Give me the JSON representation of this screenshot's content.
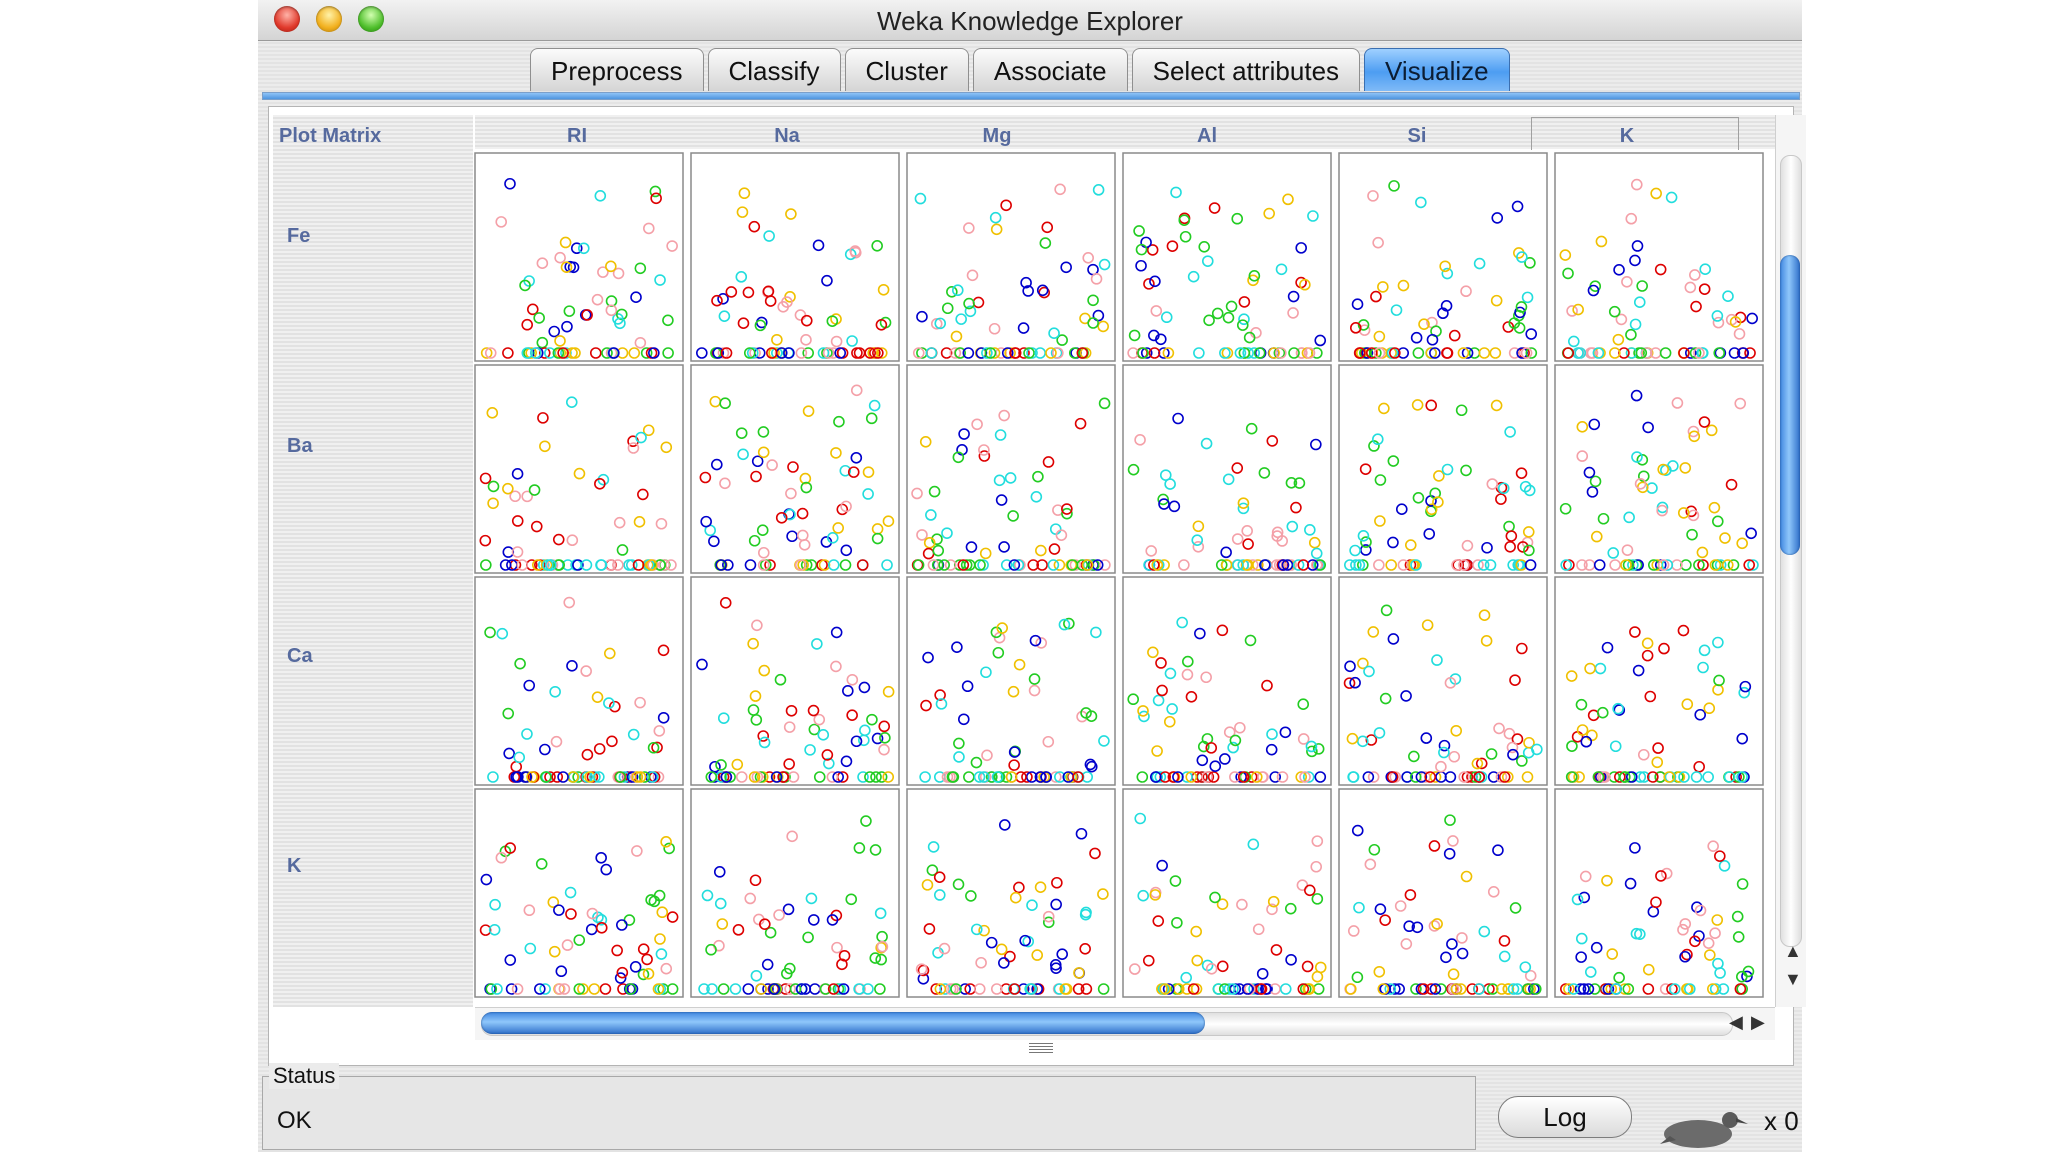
{
  "window": {
    "title": "Weka Knowledge Explorer"
  },
  "tabs": [
    {
      "label": "Preprocess",
      "active": false
    },
    {
      "label": "Classify",
      "active": false
    },
    {
      "label": "Cluster",
      "active": false
    },
    {
      "label": "Associate",
      "active": false
    },
    {
      "label": "Select attributes",
      "active": false
    },
    {
      "label": "Visualize",
      "active": true
    }
  ],
  "plot_matrix": {
    "title": "Plot Matrix",
    "columns": [
      "RI",
      "Na",
      "Mg",
      "Al",
      "Si",
      "K"
    ],
    "rows": [
      "Fe",
      "Ba",
      "Ca",
      "K"
    ],
    "point_colors": {
      "red": "#dd0000",
      "blue": "#0000cc",
      "yellow": "#f0c000",
      "green": "#22cc22",
      "pink": "#f4a0a8",
      "cyan": "#22dddd"
    }
  },
  "status": {
    "label": "Status",
    "text": "OK"
  },
  "log_button": {
    "label": "Log"
  },
  "tasks": {
    "count": "x 0"
  },
  "icons": {
    "weka_bird": "weka-bird-icon"
  }
}
